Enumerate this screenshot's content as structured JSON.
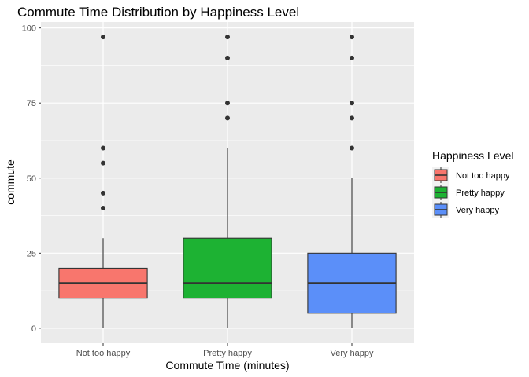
{
  "chart_data": {
    "type": "boxplot",
    "title": "Commute Time Distribution by Happiness Level",
    "xlabel": "Commute Time (minutes)",
    "ylabel": "commute",
    "ylim": [
      -5,
      102
    ],
    "yticks": [
      0,
      25,
      50,
      75,
      100
    ],
    "categories": [
      "Not too happy",
      "Pretty happy",
      "Very happy"
    ],
    "grid": true,
    "legend": {
      "title": "Happiness Level",
      "position": "right",
      "items": [
        "Not too happy",
        "Pretty happy",
        "Very happy"
      ]
    },
    "boxes": [
      {
        "name": "Not too happy",
        "color": "#F8766D",
        "whisker_low": 0,
        "q1": 10,
        "median": 15,
        "q3": 20,
        "whisker_high": 30,
        "outliers": [
          40,
          45,
          55,
          60,
          97
        ]
      },
      {
        "name": "Pretty happy",
        "color": "#1DB233",
        "whisker_low": 0,
        "q1": 10,
        "median": 15,
        "q3": 30,
        "whisker_high": 60,
        "outliers": [
          70,
          75,
          90,
          97
        ]
      },
      {
        "name": "Very happy",
        "color": "#5B8FF9",
        "whisker_low": 0,
        "q1": 5,
        "median": 15,
        "q3": 25,
        "whisker_high": 50,
        "outliers": [
          60,
          70,
          75,
          90,
          97
        ]
      }
    ]
  },
  "colors": {
    "panel_background": "#EBEBEB",
    "grid_line": "#FFFFFF",
    "box_outline": "#333333",
    "outlier": "#333333"
  }
}
